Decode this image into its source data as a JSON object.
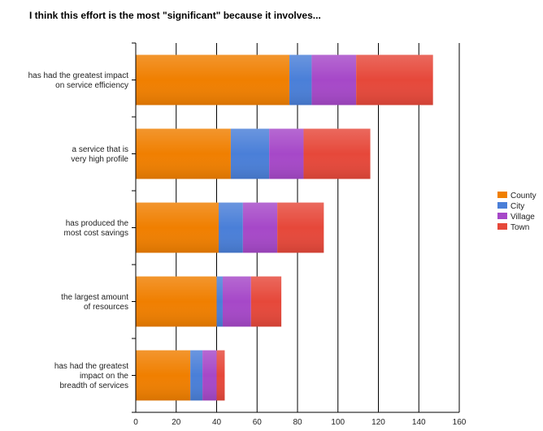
{
  "chart_data": {
    "type": "bar",
    "orientation": "horizontal",
    "stacked": true,
    "title": "I think this effort is the most \"significant\" because it involves...",
    "xlabel": "",
    "ylabel": "",
    "xlim": [
      0,
      160
    ],
    "x_ticks": [
      0,
      20,
      40,
      60,
      80,
      100,
      120,
      140,
      160
    ],
    "grid": true,
    "legend_position": "right",
    "categories": [
      [
        "has had the greatest impact",
        "on service efficiency"
      ],
      [
        "a service that is",
        "very high profile"
      ],
      [
        "has produced the",
        "most cost savings"
      ],
      [
        "the largest amount",
        "of resources"
      ],
      [
        "has had the greatest",
        "impact on the",
        "breadth of services"
      ]
    ],
    "series": [
      {
        "name": "County",
        "color": "#f07f00",
        "values": [
          76,
          47,
          41,
          40,
          27
        ]
      },
      {
        "name": "City",
        "color": "#4a7fd8",
        "values": [
          11,
          19,
          12,
          3,
          6
        ]
      },
      {
        "name": "Village",
        "color": "#a648c8",
        "values": [
          22,
          17,
          17,
          14,
          7
        ]
      },
      {
        "name": "Town",
        "color": "#e6483a",
        "values": [
          38,
          33,
          23,
          15,
          4
        ]
      }
    ]
  }
}
